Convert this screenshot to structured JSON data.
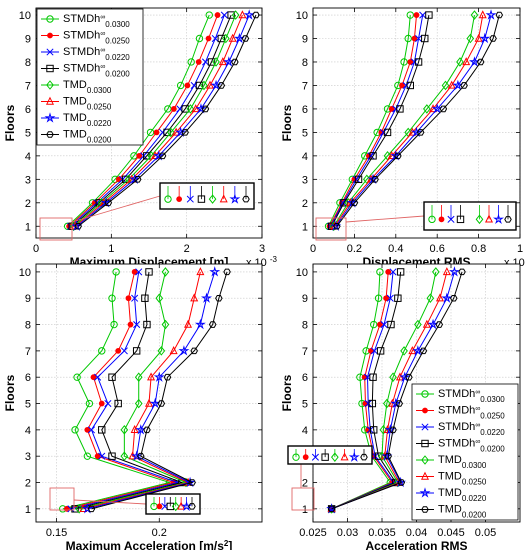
{
  "colors": {
    "STMDh_0300": "#00c800",
    "STMDh_0250": "#ff0000",
    "STMDh_0220": "#0000ff",
    "STMDh_0200": "#000000",
    "zoom_box": "#e06666"
  },
  "legend_entries": [
    {
      "base": "STMDh",
      "sub": "0.0300",
      "color": "#00c800",
      "marker": "circle"
    },
    {
      "base": "STMDh",
      "sub": "0.0250",
      "color": "#ff0000",
      "marker": "dot"
    },
    {
      "base": "STMDh",
      "sub": "0.0220",
      "color": "#0000ff",
      "marker": "x"
    },
    {
      "base": "STMDh",
      "sub": "0.0200",
      "color": "#000000",
      "marker": "square"
    },
    {
      "base": "TMD",
      "sub": "0.0300",
      "color": "#00c800",
      "marker": "diamond"
    },
    {
      "base": "TMD",
      "sub": "0.0250",
      "color": "#ff0000",
      "marker": "triangle"
    },
    {
      "base": "TMD",
      "sub": "0.0220",
      "color": "#0000ff",
      "marker": "star"
    },
    {
      "base": "TMD",
      "sub": "0.0200",
      "color": "#000000",
      "marker": "hexagon"
    }
  ],
  "chart_data": [
    {
      "type": "line",
      "panel": "top-left",
      "xlabel": "Maximum Displacement [m]",
      "ylabel": "Floors",
      "exponent": "x 10",
      "exponent_power": "-3",
      "xlim": [
        0,
        3
      ],
      "xticks": [
        "0",
        "1",
        "2",
        "3"
      ],
      "ylim": [
        0.5,
        10.3
      ],
      "yticks": [
        "1",
        "2",
        "3",
        "4",
        "5",
        "6",
        "7",
        "8",
        "9",
        "10"
      ],
      "grid": true,
      "legend_position": "top-left",
      "y": [
        1,
        2,
        3,
        4,
        5,
        6,
        7,
        8,
        9,
        10
      ],
      "series": [
        {
          "name": "STMDh 0.0300",
          "values": [
            0.42,
            0.75,
            1.05,
            1.3,
            1.52,
            1.75,
            1.92,
            2.06,
            2.17,
            2.3
          ]
        },
        {
          "name": "STMDh 0.0250",
          "values": [
            0.44,
            0.78,
            1.1,
            1.37,
            1.6,
            1.83,
            2.01,
            2.16,
            2.29,
            2.41
          ]
        },
        {
          "name": "STMDh 0.0220",
          "values": [
            0.46,
            0.81,
            1.15,
            1.43,
            1.68,
            1.91,
            2.1,
            2.25,
            2.38,
            2.5
          ]
        },
        {
          "name": "STMDh 0.0200",
          "values": [
            0.48,
            0.84,
            1.19,
            1.47,
            1.74,
            1.98,
            2.17,
            2.33,
            2.46,
            2.59
          ]
        },
        {
          "name": "TMD 0.0300",
          "values": [
            0.5,
            0.87,
            1.23,
            1.53,
            1.79,
            2.05,
            2.23,
            2.39,
            2.52,
            2.65
          ]
        },
        {
          "name": "TMD 0.0250",
          "values": [
            0.52,
            0.9,
            1.27,
            1.58,
            1.86,
            2.12,
            2.31,
            2.48,
            2.61,
            2.74
          ]
        },
        {
          "name": "TMD 0.0220",
          "values": [
            0.54,
            0.93,
            1.31,
            1.63,
            1.92,
            2.19,
            2.39,
            2.56,
            2.7,
            2.83
          ]
        },
        {
          "name": "TMD 0.0200",
          "values": [
            0.56,
            0.96,
            1.35,
            1.68,
            1.98,
            2.25,
            2.46,
            2.64,
            2.78,
            2.92
          ]
        }
      ]
    },
    {
      "type": "line",
      "panel": "top-right",
      "xlabel": "Displacement RMS",
      "ylabel": "Floors",
      "exponent": "x 10",
      "exponent_power": "-3",
      "xlim": [
        0,
        1
      ],
      "xticks": [
        "0",
        "0.2",
        "0.4",
        "0.6",
        "0.8",
        "1"
      ],
      "ylim": [
        0.5,
        10.3
      ],
      "yticks": [
        "1",
        "2",
        "3",
        "4",
        "5",
        "6",
        "7",
        "8",
        "9",
        "10"
      ],
      "grid": true,
      "y": [
        1,
        2,
        3,
        4,
        5,
        6,
        7,
        8,
        9,
        10
      ],
      "series": [
        {
          "name": "STMDh 0.0300",
          "values": [
            0.075,
            0.13,
            0.19,
            0.25,
            0.31,
            0.36,
            0.41,
            0.44,
            0.46,
            0.47
          ]
        },
        {
          "name": "STMDh 0.0250",
          "values": [
            0.08,
            0.14,
            0.2,
            0.27,
            0.33,
            0.38,
            0.43,
            0.47,
            0.49,
            0.5
          ]
        },
        {
          "name": "STMDh 0.0220",
          "values": [
            0.085,
            0.145,
            0.21,
            0.28,
            0.34,
            0.4,
            0.45,
            0.49,
            0.51,
            0.53
          ]
        },
        {
          "name": "STMDh 0.0200",
          "values": [
            0.09,
            0.15,
            0.22,
            0.29,
            0.36,
            0.42,
            0.47,
            0.51,
            0.54,
            0.56
          ]
        },
        {
          "name": "TMD 0.0300",
          "values": [
            0.1,
            0.17,
            0.26,
            0.36,
            0.46,
            0.55,
            0.64,
            0.71,
            0.76,
            0.78
          ]
        },
        {
          "name": "TMD 0.0250",
          "values": [
            0.105,
            0.18,
            0.28,
            0.38,
            0.48,
            0.58,
            0.67,
            0.74,
            0.8,
            0.82
          ]
        },
        {
          "name": "TMD 0.0220",
          "values": [
            0.11,
            0.19,
            0.29,
            0.4,
            0.5,
            0.6,
            0.7,
            0.78,
            0.83,
            0.86
          ]
        },
        {
          "name": "TMD 0.0200",
          "values": [
            0.115,
            0.2,
            0.3,
            0.41,
            0.52,
            0.63,
            0.73,
            0.81,
            0.87,
            0.9
          ]
        }
      ]
    },
    {
      "type": "line",
      "panel": "bottom-left",
      "xlabel": "Maximum Acceleration [m/s",
      "xlabel_power": "2",
      "xlabel_suffix": "]",
      "ylabel": "Floors",
      "xlim": [
        0.14,
        0.25
      ],
      "xticks": [
        "0.15",
        "0.2"
      ],
      "xtick_values": [
        0.15,
        0.2
      ],
      "ylim": [
        0.5,
        10.3
      ],
      "yticks": [
        "1",
        "2",
        "3",
        "4",
        "5",
        "6",
        "7",
        "8",
        "9",
        "10"
      ],
      "grid": true,
      "y": [
        1,
        2,
        3,
        4,
        5,
        6,
        7,
        8,
        9,
        10
      ],
      "series": [
        {
          "name": "STMDh 0.0300",
          "values": [
            0.153,
            0.205,
            0.165,
            0.159,
            0.166,
            0.16,
            0.172,
            0.178,
            0.177,
            0.179
          ]
        },
        {
          "name": "STMDh 0.0250",
          "values": [
            0.155,
            0.207,
            0.17,
            0.165,
            0.172,
            0.168,
            0.18,
            0.186,
            0.185,
            0.188
          ]
        },
        {
          "name": "STMDh 0.0220",
          "values": [
            0.157,
            0.209,
            0.172,
            0.167,
            0.175,
            0.17,
            0.183,
            0.189,
            0.188,
            0.19
          ]
        },
        {
          "name": "STMDh 0.0200",
          "values": [
            0.159,
            0.211,
            0.177,
            0.172,
            0.18,
            0.177,
            0.189,
            0.194,
            0.193,
            0.195
          ]
        },
        {
          "name": "TMD 0.0300",
          "values": [
            0.161,
            0.213,
            0.183,
            0.183,
            0.19,
            0.19,
            0.201,
            0.203,
            0.2,
            0.203
          ]
        },
        {
          "name": "TMD 0.0250",
          "values": [
            0.163,
            0.214,
            0.187,
            0.188,
            0.195,
            0.196,
            0.207,
            0.214,
            0.217,
            0.22
          ]
        },
        {
          "name": "TMD 0.0220",
          "values": [
            0.165,
            0.215,
            0.189,
            0.191,
            0.198,
            0.2,
            0.212,
            0.22,
            0.223,
            0.227
          ]
        },
        {
          "name": "TMD 0.0200",
          "values": [
            0.167,
            0.216,
            0.191,
            0.194,
            0.201,
            0.204,
            0.217,
            0.226,
            0.229,
            0.233
          ]
        }
      ]
    },
    {
      "type": "line",
      "panel": "bottom-right",
      "xlabel": "Acceleration RMS",
      "ylabel": "Floors",
      "xlim": [
        0.025,
        0.055
      ],
      "xticks": [
        "0.025",
        "0.03",
        "0.035",
        "0.04",
        "0.045",
        "0.05"
      ],
      "xtick_values": [
        0.025,
        0.03,
        0.035,
        0.04,
        0.045,
        0.05
      ],
      "ylim": [
        0.5,
        10.3
      ],
      "yticks": [
        "1",
        "2",
        "3",
        "4",
        "5",
        "6",
        "7",
        "8",
        "9",
        "10"
      ],
      "grid": true,
      "legend_position": "bottom-right",
      "y": [
        1,
        2,
        3,
        4,
        5,
        6,
        7,
        8,
        9,
        10
      ],
      "series": [
        {
          "name": "STMDh 0.0300",
          "values": [
            0.0277,
            0.0362,
            0.0335,
            0.0325,
            0.0321,
            0.0318,
            0.0327,
            0.0338,
            0.0345,
            0.0347
          ]
        },
        {
          "name": "STMDh 0.0250",
          "values": [
            0.0277,
            0.0365,
            0.0338,
            0.033,
            0.0326,
            0.0325,
            0.0334,
            0.0347,
            0.0356,
            0.0359
          ]
        },
        {
          "name": "STMDh 0.0220",
          "values": [
            0.0277,
            0.0367,
            0.034,
            0.0333,
            0.033,
            0.0329,
            0.0339,
            0.0353,
            0.0362,
            0.0366
          ]
        },
        {
          "name": "STMDh 0.0200",
          "values": [
            0.0277,
            0.037,
            0.0345,
            0.0338,
            0.0336,
            0.0337,
            0.0348,
            0.0363,
            0.0373,
            0.0377
          ]
        },
        {
          "name": "TMD 0.0300",
          "values": [
            0.0277,
            0.0373,
            0.035,
            0.0352,
            0.0357,
            0.0366,
            0.0382,
            0.0402,
            0.042,
            0.0428
          ]
        },
        {
          "name": "TMD 0.0250",
          "values": [
            0.0277,
            0.0375,
            0.0354,
            0.0358,
            0.0365,
            0.0376,
            0.0394,
            0.0415,
            0.0434,
            0.0444
          ]
        },
        {
          "name": "TMD 0.0220",
          "values": [
            0.0277,
            0.0377,
            0.0357,
            0.0362,
            0.037,
            0.0383,
            0.0402,
            0.0424,
            0.0444,
            0.0455
          ]
        },
        {
          "name": "TMD 0.0200",
          "values": [
            0.0277,
            0.0378,
            0.0359,
            0.0366,
            0.0375,
            0.0389,
            0.041,
            0.0433,
            0.0454,
            0.0466
          ]
        }
      ]
    }
  ]
}
